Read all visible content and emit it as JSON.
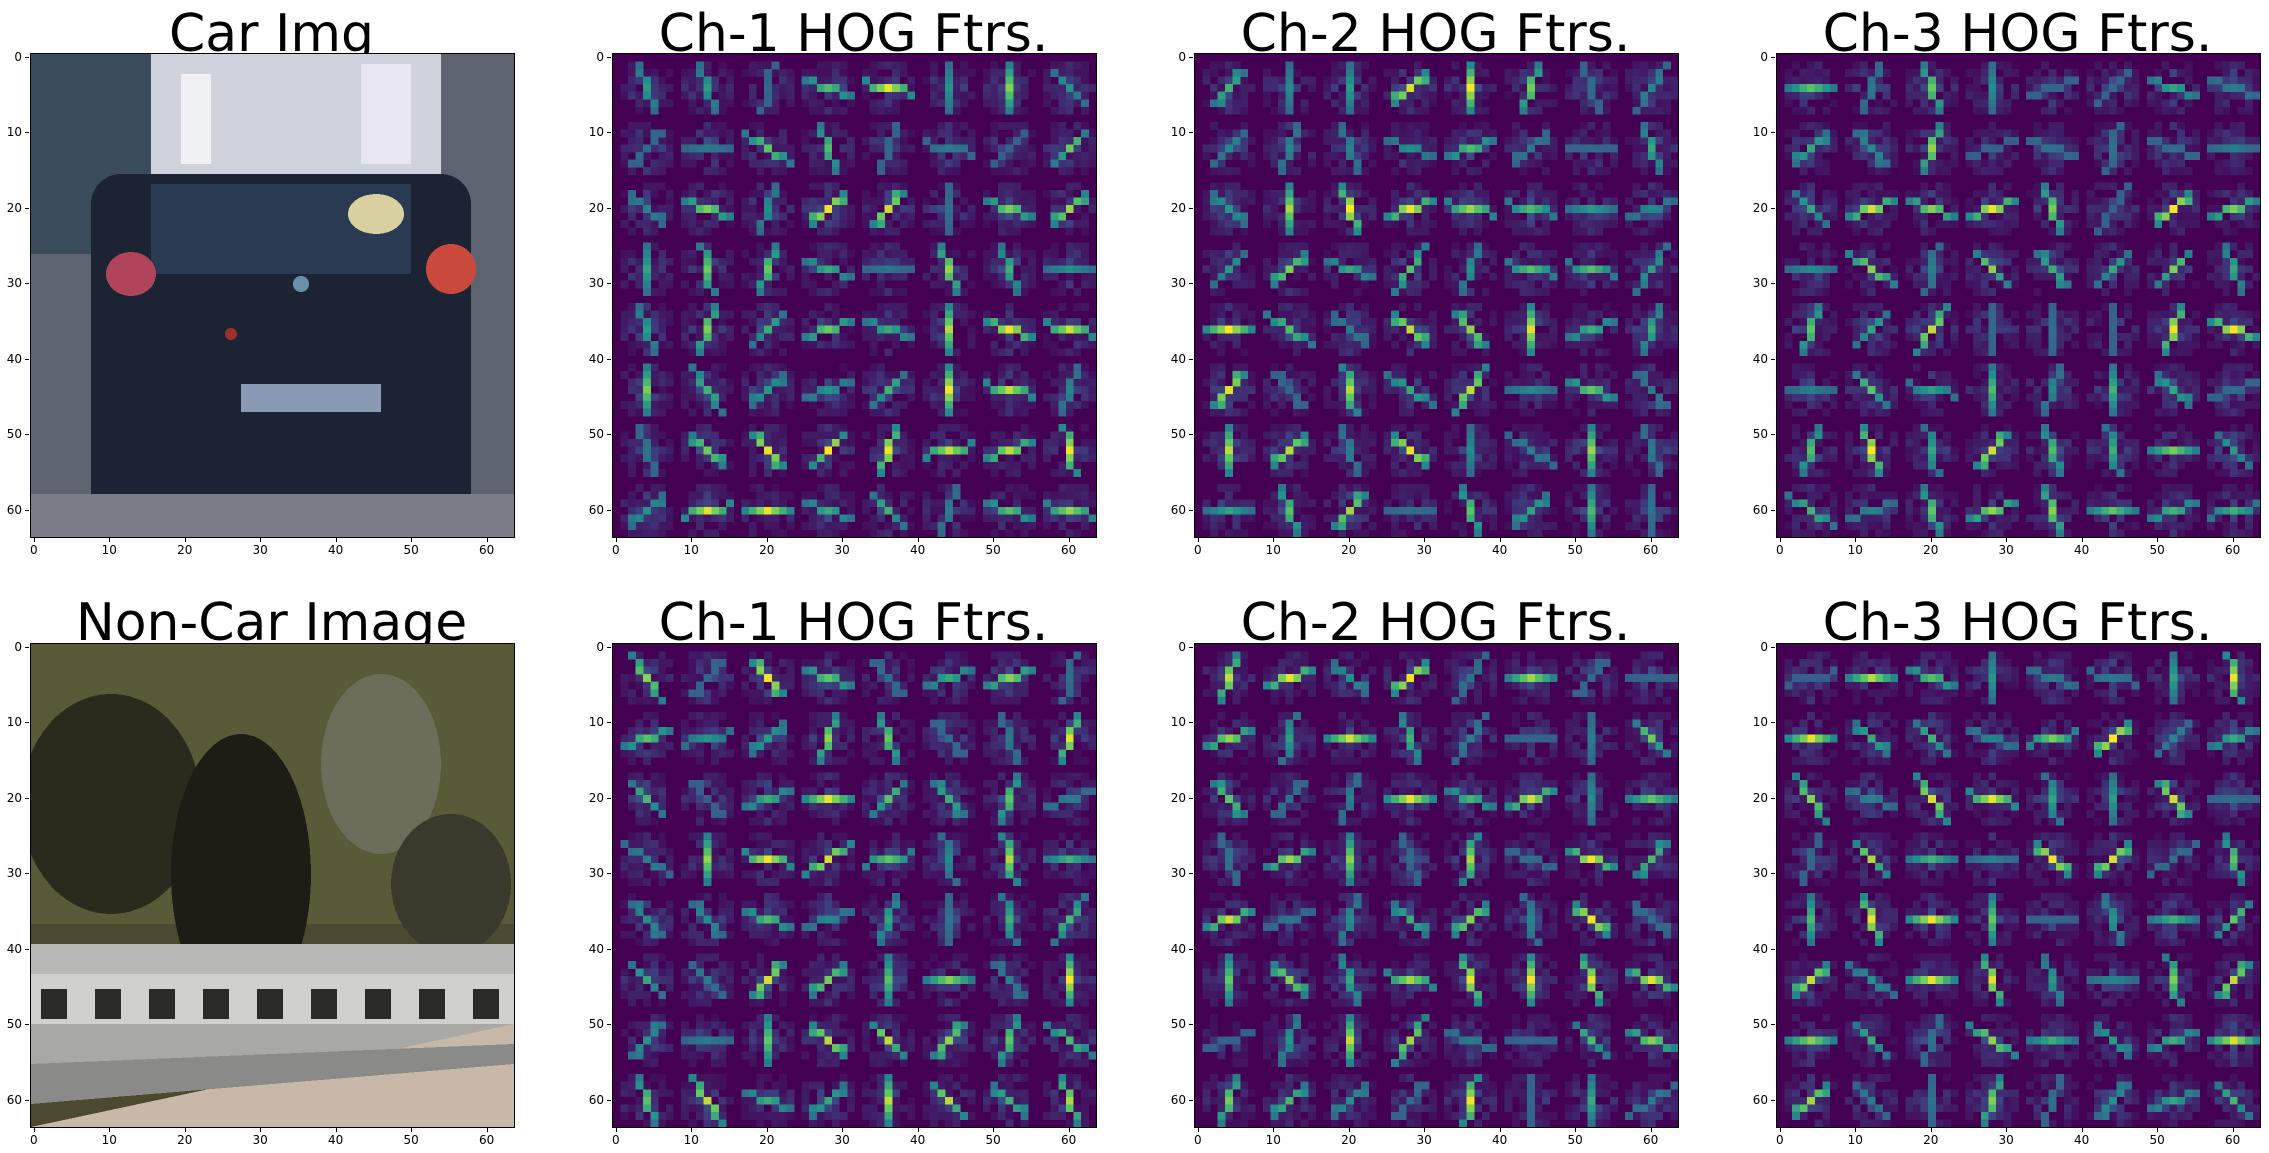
{
  "row1": {
    "titles": [
      "Car Img",
      "Ch-1 HOG Ftrs.",
      "Ch-2 HOG Ftrs.",
      "Ch-3 HOG Ftrs."
    ]
  },
  "row2": {
    "titles": [
      "Non-Car Image",
      "Ch-1 HOG Ftrs.",
      "Ch-2 HOG Ftrs.",
      "Ch-3 HOG Ftrs."
    ]
  },
  "axis_ticks": {
    "x": [
      "0",
      "10",
      "20",
      "30",
      "40",
      "50",
      "60"
    ],
    "y": [
      "0",
      "10",
      "20",
      "30",
      "40",
      "50",
      "60"
    ]
  },
  "colors": {
    "viridis_bg": "#440154",
    "viridis_mid": "#21918c",
    "viridis_hi": "#5ec962",
    "viridis_max": "#fde725"
  }
}
